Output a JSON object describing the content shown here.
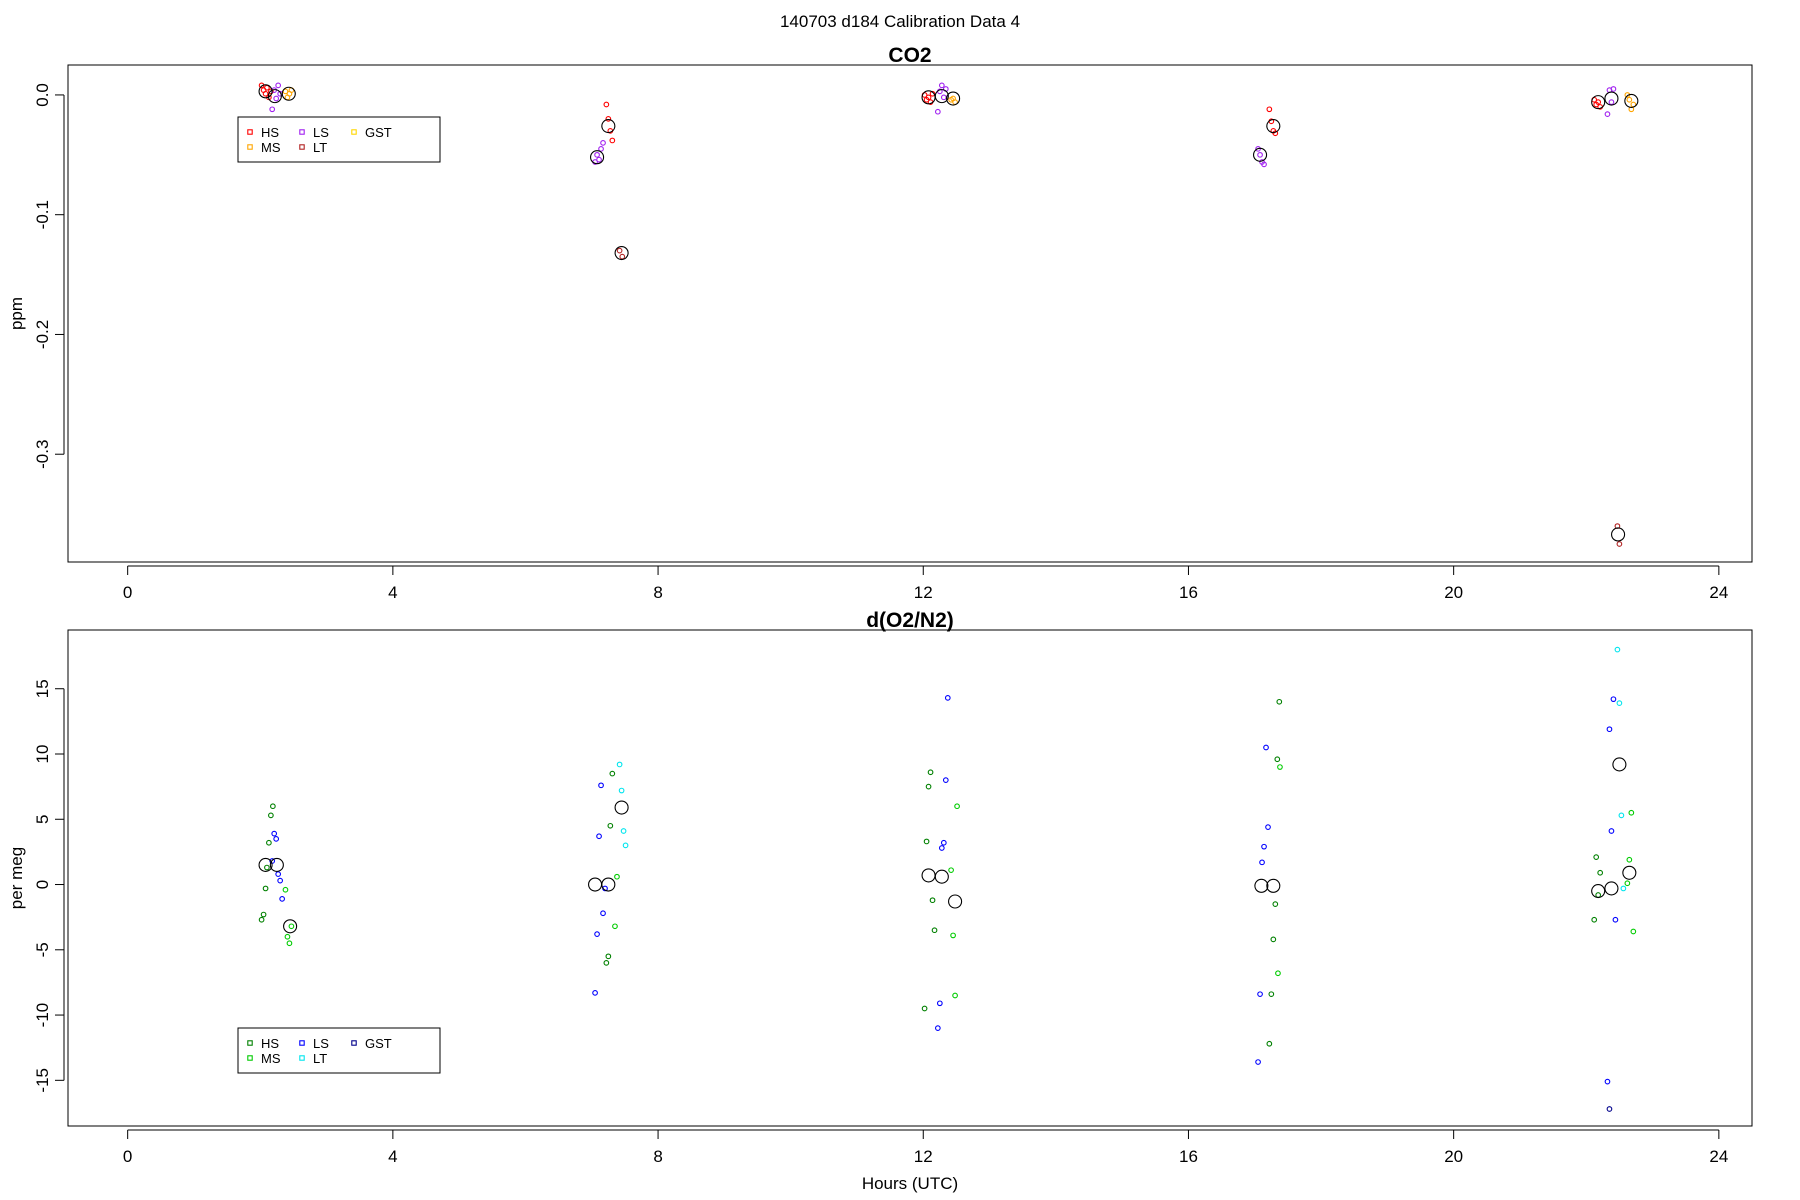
{
  "title": "140703   d184   Calibration Data 4",
  "x_axis_label": "Hours (UTC)",
  "chart_data": [
    {
      "type": "scatter",
      "title": "CO2",
      "ylabel": "ppm",
      "xlabel": "Hours (UTC)",
      "xlim": [
        -0.9,
        24.5
      ],
      "ylim": [
        -0.39,
        0.025
      ],
      "x_ticks": [
        0,
        4,
        8,
        12,
        16,
        20,
        24
      ],
      "x_tick_labels": [
        "0",
        "4",
        "8",
        "12",
        "16",
        "20",
        "24"
      ],
      "y_ticks": [
        0.0,
        -0.1,
        -0.2,
        -0.3
      ],
      "y_tick_labels": [
        "0.0",
        "-0.1",
        "-0.2",
        "-0.3"
      ],
      "grid": false,
      "legend": {
        "placement": "top-left",
        "columns": 3,
        "entries": [
          {
            "label": "HS",
            "color": "#ff0000"
          },
          {
            "label": "MS",
            "color": "#ffa500"
          },
          {
            "label": "LS",
            "color": "#a020f0"
          },
          {
            "label": "LT",
            "color": "#b22222"
          },
          {
            "label": "GST",
            "color": "#ffd700"
          }
        ]
      },
      "series": [
        {
          "name": "HS",
          "color": "#ff0000",
          "points": [
            [
              2.02,
              0.008
            ],
            [
              2.05,
              0.004
            ],
            [
              2.08,
              0.001
            ],
            [
              2.1,
              0.006
            ],
            [
              2.13,
              -0.002
            ],
            [
              2.16,
              0.003
            ],
            [
              7.22,
              -0.008
            ],
            [
              7.25,
              -0.02
            ],
            [
              7.28,
              -0.03
            ],
            [
              7.31,
              -0.038
            ],
            [
              12.02,
              0.0
            ],
            [
              12.05,
              -0.004
            ],
            [
              12.08,
              -0.002
            ],
            [
              12.11,
              -0.006
            ],
            [
              12.14,
              0.001
            ],
            [
              17.22,
              -0.012
            ],
            [
              17.25,
              -0.022
            ],
            [
              17.28,
              -0.03
            ],
            [
              17.31,
              -0.032
            ],
            [
              22.12,
              -0.004
            ],
            [
              22.15,
              -0.008
            ],
            [
              22.18,
              -0.006
            ],
            [
              22.21,
              -0.01
            ]
          ]
        },
        {
          "name": "MS",
          "color": "#ffa500",
          "points": [
            [
              2.38,
              0.003
            ],
            [
              2.41,
              -0.002
            ],
            [
              2.44,
              0.001
            ],
            [
              2.47,
              0.004
            ],
            [
              12.42,
              -0.004
            ],
            [
              12.45,
              -0.003
            ],
            [
              12.48,
              -0.006
            ],
            [
              22.62,
              0.0
            ],
            [
              22.65,
              -0.004
            ],
            [
              22.68,
              -0.012
            ],
            [
              22.71,
              -0.008
            ]
          ]
        },
        {
          "name": "LS",
          "color": "#a020f0",
          "points": [
            [
              2.18,
              -0.012
            ],
            [
              2.21,
              0.004
            ],
            [
              2.24,
              -0.003
            ],
            [
              2.27,
              0.008
            ],
            [
              2.3,
              0.001
            ],
            [
              7.05,
              -0.056
            ],
            [
              7.08,
              -0.05
            ],
            [
              7.11,
              -0.054
            ],
            [
              7.14,
              -0.045
            ],
            [
              7.17,
              -0.04
            ],
            [
              12.22,
              -0.014
            ],
            [
              12.25,
              0.003
            ],
            [
              12.28,
              0.008
            ],
            [
              12.31,
              -0.002
            ],
            [
              12.34,
              0.005
            ],
            [
              17.05,
              -0.045
            ],
            [
              17.08,
              -0.05
            ],
            [
              17.11,
              -0.056
            ],
            [
              17.14,
              -0.058
            ],
            [
              22.32,
              -0.016
            ],
            [
              22.35,
              0.004
            ],
            [
              22.38,
              -0.006
            ],
            [
              22.41,
              0.005
            ]
          ]
        },
        {
          "name": "LT",
          "color": "#b22222",
          "points": [
            [
              7.42,
              -0.13
            ],
            [
              7.46,
              -0.135
            ],
            [
              22.47,
              -0.36
            ],
            [
              22.5,
              -0.375
            ]
          ]
        },
        {
          "name": "GST",
          "color": "#ffd700",
          "points": []
        }
      ],
      "means": [
        [
          2.08,
          0.003
        ],
        [
          2.22,
          -0.001
        ],
        [
          2.43,
          0.001
        ],
        [
          7.08,
          -0.052
        ],
        [
          7.25,
          -0.026
        ],
        [
          7.45,
          -0.132
        ],
        [
          12.08,
          -0.002
        ],
        [
          12.28,
          -0.001
        ],
        [
          12.45,
          -0.003
        ],
        [
          17.08,
          -0.05
        ],
        [
          17.28,
          -0.026
        ],
        [
          22.18,
          -0.006
        ],
        [
          22.38,
          -0.003
        ],
        [
          22.48,
          -0.367
        ],
        [
          22.68,
          -0.005
        ]
      ]
    },
    {
      "type": "scatter",
      "title": "d(O2/N2)",
      "ylabel": "per meg",
      "xlabel": "Hours (UTC)",
      "xlim": [
        -0.9,
        24.5
      ],
      "ylim": [
        -18.5,
        19.5
      ],
      "x_ticks": [
        0,
        4,
        8,
        12,
        16,
        20,
        24
      ],
      "x_tick_labels": [
        "0",
        "4",
        "8",
        "12",
        "16",
        "20",
        "24"
      ],
      "y_ticks": [
        15,
        10,
        5,
        0,
        -5,
        -10,
        -15
      ],
      "y_tick_labels": [
        "15",
        "10",
        "5",
        "0",
        "-5",
        "-10",
        "-15"
      ],
      "grid": false,
      "legend": {
        "placement": "bottom-left",
        "columns": 3,
        "entries": [
          {
            "label": "HS",
            "color": "#008000"
          },
          {
            "label": "MS",
            "color": "#00cc00"
          },
          {
            "label": "LS",
            "color": "#0000ff"
          },
          {
            "label": "LT",
            "color": "#00e5ee"
          },
          {
            "label": "GST",
            "color": "#00008b"
          }
        ]
      },
      "series": [
        {
          "name": "HS",
          "color": "#008000",
          "points": [
            [
              2.02,
              -2.7
            ],
            [
              2.05,
              -2.3
            ],
            [
              2.08,
              -0.3
            ],
            [
              2.1,
              1.3
            ],
            [
              2.13,
              3.2
            ],
            [
              2.16,
              5.3
            ],
            [
              2.19,
              6.0
            ],
            [
              7.22,
              -6.0
            ],
            [
              7.25,
              -5.5
            ],
            [
              7.28,
              4.5
            ],
            [
              7.31,
              8.5
            ],
            [
              12.02,
              -9.5
            ],
            [
              12.05,
              3.3
            ],
            [
              12.08,
              7.5
            ],
            [
              12.11,
              8.6
            ],
            [
              12.14,
              -1.2
            ],
            [
              12.17,
              -3.5
            ],
            [
              17.22,
              -12.2
            ],
            [
              17.25,
              -8.4
            ],
            [
              17.28,
              -4.2
            ],
            [
              17.31,
              -1.5
            ],
            [
              17.34,
              9.6
            ],
            [
              17.37,
              14.0
            ],
            [
              22.12,
              -2.7
            ],
            [
              22.15,
              2.1
            ],
            [
              22.18,
              -0.8
            ],
            [
              22.21,
              0.9
            ]
          ]
        },
        {
          "name": "MS",
          "color": "#00cc00",
          "points": [
            [
              2.38,
              -0.4
            ],
            [
              2.41,
              -4.0
            ],
            [
              2.44,
              -4.5
            ],
            [
              2.47,
              -3.2
            ],
            [
              7.35,
              -3.2
            ],
            [
              7.38,
              0.6
            ],
            [
              12.42,
              1.1
            ],
            [
              12.45,
              -3.9
            ],
            [
              12.48,
              -8.5
            ],
            [
              12.51,
              6.0
            ],
            [
              17.35,
              -6.8
            ],
            [
              17.38,
              9.0
            ],
            [
              22.62,
              0.1
            ],
            [
              22.65,
              1.9
            ],
            [
              22.68,
              5.5
            ],
            [
              22.71,
              -3.6
            ]
          ]
        },
        {
          "name": "LS",
          "color": "#0000ff",
          "points": [
            [
              2.18,
              1.8
            ],
            [
              2.21,
              3.9
            ],
            [
              2.24,
              3.5
            ],
            [
              2.27,
              0.8
            ],
            [
              2.3,
              0.3
            ],
            [
              2.33,
              -1.1
            ],
            [
              7.05,
              -8.3
            ],
            [
              7.08,
              -3.8
            ],
            [
              7.11,
              3.7
            ],
            [
              7.14,
              7.6
            ],
            [
              7.17,
              -2.2
            ],
            [
              7.2,
              -0.3
            ],
            [
              12.22,
              -11.0
            ],
            [
              12.25,
              -9.1
            ],
            [
              12.28,
              2.8
            ],
            [
              12.31,
              3.2
            ],
            [
              12.34,
              8.0
            ],
            [
              12.37,
              14.3
            ],
            [
              17.05,
              -13.6
            ],
            [
              17.08,
              -8.4
            ],
            [
              17.11,
              1.7
            ],
            [
              17.14,
              2.9
            ],
            [
              17.17,
              10.5
            ],
            [
              17.2,
              4.4
            ],
            [
              22.32,
              -15.1
            ],
            [
              22.35,
              11.9
            ],
            [
              22.38,
              4.1
            ],
            [
              22.41,
              14.2
            ],
            [
              22.44,
              -2.7
            ]
          ]
        },
        {
          "name": "LT",
          "color": "#00e5ee",
          "points": [
            [
              7.42,
              9.2
            ],
            [
              7.45,
              7.2
            ],
            [
              7.48,
              4.1
            ],
            [
              7.51,
              3.0
            ],
            [
              22.47,
              18.0
            ],
            [
              22.5,
              13.9
            ],
            [
              22.53,
              5.3
            ],
            [
              22.56,
              -0.3
            ]
          ]
        },
        {
          "name": "GST",
          "color": "#00008b",
          "points": [
            [
              22.35,
              -17.2
            ]
          ]
        }
      ],
      "means": [
        [
          2.08,
          1.5
        ],
        [
          2.25,
          1.5
        ],
        [
          2.45,
          -3.2
        ],
        [
          7.05,
          0.0
        ],
        [
          7.25,
          0.0
        ],
        [
          7.45,
          5.9
        ],
        [
          12.08,
          0.7
        ],
        [
          12.28,
          0.6
        ],
        [
          12.48,
          -1.3
        ],
        [
          17.1,
          -0.1
        ],
        [
          17.28,
          -0.1
        ],
        [
          22.18,
          -0.5
        ],
        [
          22.38,
          -0.3
        ],
        [
          22.5,
          9.2
        ],
        [
          22.65,
          0.9
        ]
      ]
    }
  ]
}
